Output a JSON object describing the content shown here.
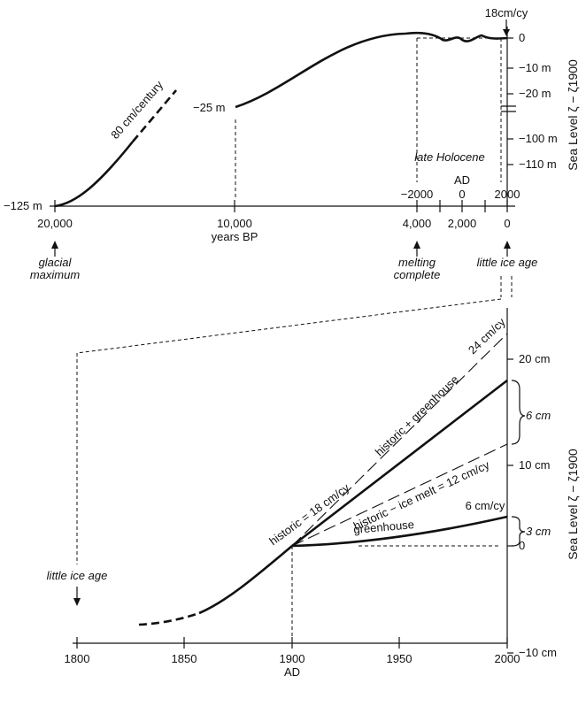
{
  "chart_data": [
    {
      "type": "line",
      "xlabel": "years BP",
      "ylabel": "Sea Level ζ − ζ1900",
      "x_ticks": [
        "20,000",
        "10,000",
        "4,000",
        "2,000",
        "0"
      ],
      "ad_axis_label": "AD",
      "ad_ticks": [
        "−2000",
        "0",
        "2000"
      ],
      "y_ticks_upper": [
        "0",
        "−10 m",
        "−20 m"
      ],
      "y_ticks_lower": [
        "−100 m",
        "−110 m"
      ],
      "series": [
        {
          "x": [
            20000,
            19500,
            19000,
            18500,
            18000,
            17500,
            17000,
            16500
          ],
          "y": [
            -125,
            -124,
            -121,
            -117,
            -112,
            -107,
            -102,
            -97
          ]
        },
        {
          "x": [
            12500,
            11500,
            10500,
            9500,
            8500,
            7500,
            6500,
            5500,
            5000,
            4500,
            4000,
            3500,
            3000,
            2500,
            2000,
            1500,
            1000,
            500,
            200,
            0
          ],
          "y": [
            -25,
            -23,
            -20,
            -17,
            -14,
            -10,
            -6,
            -3,
            -1.5,
            -0.5,
            0,
            0,
            0.3,
            -0.2,
            -0.5,
            0.3,
            -0.3,
            0.2,
            -0.2,
            0
          ]
        }
      ],
      "annotations": [
        {
          "text": "80 cm/century"
        },
        {
          "text": "−125 m"
        },
        {
          "text": "−25 m"
        },
        {
          "text": "18cm/cy"
        },
        {
          "text": "late Holocene"
        },
        {
          "text": "glacial maximum",
          "lines": [
            "glacial",
            "maximum"
          ]
        },
        {
          "text": "melting complete",
          "lines": [
            "melting",
            "complete"
          ]
        },
        {
          "text": "little ice age"
        }
      ]
    },
    {
      "type": "line",
      "xlabel": "AD",
      "ylabel": "Sea Level ζ − ζ1900",
      "x_ticks": [
        "1800",
        "1850",
        "1900",
        "1950",
        "2000"
      ],
      "y_ticks": [
        "20 cm",
        "10 cm",
        "0",
        "−10 cm"
      ],
      "series": [
        {
          "name": "historic = 18 cm/cy",
          "x": [
            1830,
            1850,
            1870,
            1885,
            1900,
            1950,
            2000
          ],
          "y": [
            -7,
            -6.3,
            -4.5,
            -2,
            0,
            9,
            18
          ]
        },
        {
          "name": "historic + greenhouse",
          "x": [
            1900,
            2000
          ],
          "y": [
            0,
            24
          ]
        },
        {
          "name": "historic − ice melt = 12 cm/cy",
          "x": [
            1900,
            2000
          ],
          "y": [
            0,
            12
          ]
        },
        {
          "name": "greenhouse",
          "x": [
            1900,
            1950,
            2000
          ],
          "y": [
            0,
            1.2,
            3
          ]
        }
      ],
      "annotations": [
        {
          "text": "24 cm/cy"
        },
        {
          "text": "6 cm/cy"
        },
        {
          "text": "6 cm"
        },
        {
          "text": "3 cm"
        },
        {
          "text": "little ice age"
        }
      ]
    }
  ]
}
